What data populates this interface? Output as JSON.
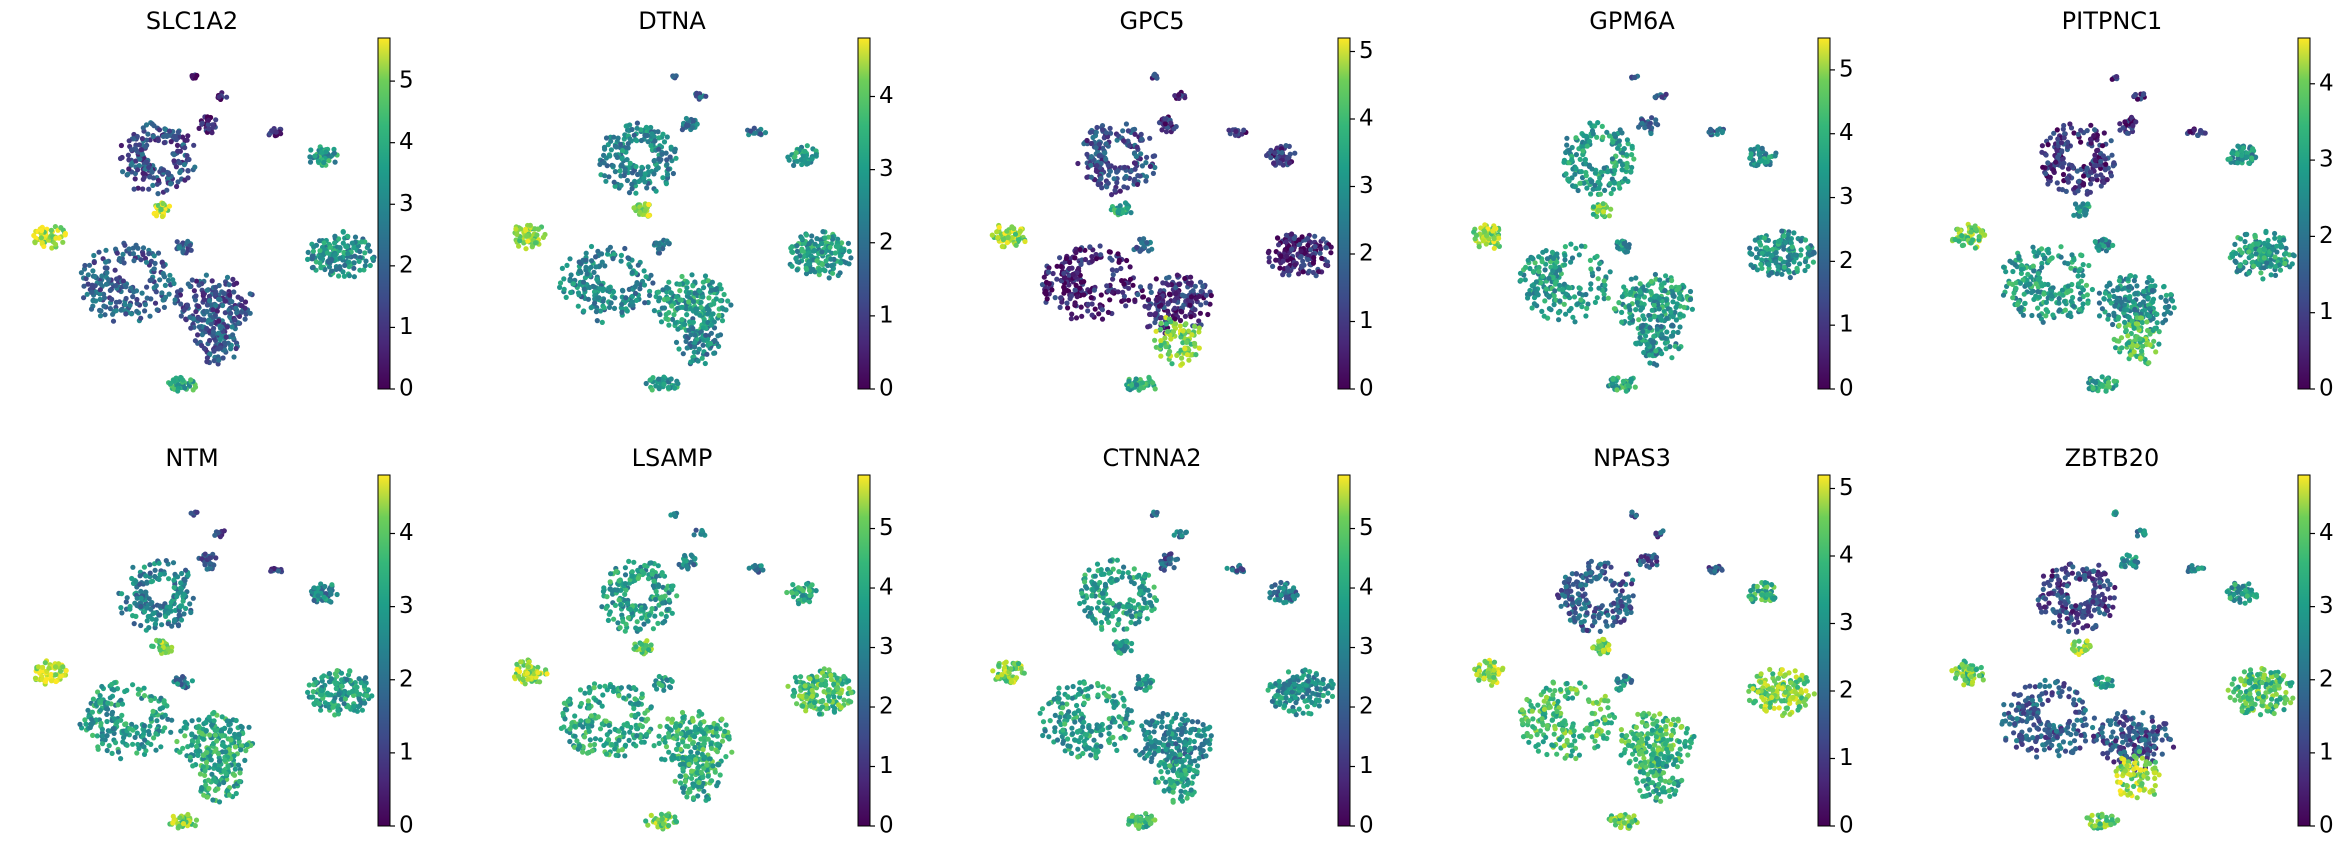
{
  "chart_data": {
    "type": "scatter",
    "description": "UMAP embedding colored by gene expression",
    "colormap": "viridis",
    "colors": {
      "low": "#440154",
      "mid": "#21918c",
      "high": "#fde725"
    },
    "panels": [
      {
        "gene": "SLC1A2",
        "cbar_max": 5.7,
        "ticks": [
          0,
          1,
          2,
          3,
          4,
          5
        ],
        "tick_labels": [
          "0",
          "1",
          "2",
          "3",
          "4",
          "5"
        ],
        "cluster_expr": [
          0.25,
          0.9,
          0.3,
          0.25,
          0.5,
          0.55,
          0.9,
          0.1,
          0.15,
          0.15,
          0.15,
          0.3,
          0.6,
          0.3
        ]
      },
      {
        "gene": "DTNA",
        "cbar_max": 4.8,
        "ticks": [
          0,
          1,
          2,
          3,
          4
        ],
        "tick_labels": [
          "0",
          "1",
          "2",
          "3",
          "4"
        ],
        "cluster_expr": [
          0.45,
          0.85,
          0.45,
          0.55,
          0.55,
          0.55,
          0.85,
          0.35,
          0.35,
          0.35,
          0.35,
          0.45,
          0.55,
          0.45
        ]
      },
      {
        "gene": "GPC5",
        "cbar_max": 5.2,
        "ticks": [
          0,
          1,
          2,
          3,
          4,
          5
        ],
        "tick_labels": [
          "0",
          "1",
          "2",
          "3",
          "4",
          "5"
        ],
        "cluster_expr": [
          0.25,
          0.85,
          0.1,
          0.15,
          0.1,
          0.15,
          0.6,
          0.15,
          0.1,
          0.15,
          0.1,
          0.8,
          0.6,
          0.3
        ]
      },
      {
        "gene": "GPM6A",
        "cbar_max": 5.5,
        "ticks": [
          0,
          1,
          2,
          3,
          4,
          5
        ],
        "tick_labels": [
          "0",
          "1",
          "2",
          "3",
          "4",
          "5"
        ],
        "cluster_expr": [
          0.55,
          0.85,
          0.55,
          0.55,
          0.5,
          0.5,
          0.75,
          0.3,
          0.35,
          0.3,
          0.3,
          0.5,
          0.6,
          0.5
        ]
      },
      {
        "gene": "PITPNC1",
        "cbar_max": 4.6,
        "ticks": [
          0,
          1,
          2,
          3,
          4
        ],
        "tick_labels": [
          "0",
          "1",
          "2",
          "3",
          "4"
        ],
        "cluster_expr": [
          0.15,
          0.8,
          0.55,
          0.5,
          0.55,
          0.5,
          0.55,
          0.1,
          0.15,
          0.15,
          0.15,
          0.7,
          0.6,
          0.45
        ]
      },
      {
        "gene": "NTM",
        "cbar_max": 4.8,
        "ticks": [
          0,
          1,
          2,
          3,
          4
        ],
        "tick_labels": [
          "0",
          "1",
          "2",
          "3",
          "4"
        ],
        "cluster_expr": [
          0.45,
          0.9,
          0.55,
          0.6,
          0.55,
          0.45,
          0.8,
          0.3,
          0.2,
          0.3,
          0.2,
          0.6,
          0.8,
          0.4
        ]
      },
      {
        "gene": "LSAMP",
        "cbar_max": 5.9,
        "ticks": [
          0,
          1,
          2,
          3,
          4,
          5
        ],
        "tick_labels": [
          "0",
          "1",
          "2",
          "3",
          "4",
          "5"
        ],
        "cluster_expr": [
          0.55,
          0.85,
          0.6,
          0.65,
          0.7,
          0.55,
          0.75,
          0.45,
          0.4,
          0.4,
          0.4,
          0.6,
          0.8,
          0.55
        ]
      },
      {
        "gene": "CTNNA2",
        "cbar_max": 5.9,
        "ticks": [
          0,
          1,
          2,
          3,
          4,
          5
        ],
        "tick_labels": [
          "0",
          "1",
          "2",
          "3",
          "4",
          "5"
        ],
        "cluster_expr": [
          0.55,
          0.8,
          0.55,
          0.45,
          0.5,
          0.4,
          0.55,
          0.3,
          0.35,
          0.35,
          0.35,
          0.55,
          0.65,
          0.5
        ]
      },
      {
        "gene": "NPAS3",
        "cbar_max": 5.2,
        "ticks": [
          0,
          1,
          2,
          3,
          4,
          5
        ],
        "tick_labels": [
          "0",
          "1",
          "2",
          "3",
          "4",
          "5"
        ],
        "cluster_expr": [
          0.3,
          0.85,
          0.7,
          0.7,
          0.8,
          0.65,
          0.8,
          0.25,
          0.25,
          0.25,
          0.25,
          0.6,
          0.75,
          0.45
        ]
      },
      {
        "gene": "ZBTB20",
        "cbar_max": 4.8,
        "ticks": [
          0,
          1,
          2,
          3,
          4
        ],
        "tick_labels": [
          "0",
          "1",
          "2",
          "3",
          "4"
        ],
        "cluster_expr": [
          0.2,
          0.75,
          0.3,
          0.25,
          0.7,
          0.55,
          0.85,
          0.5,
          0.45,
          0.5,
          0.45,
          0.85,
          0.75,
          0.55
        ]
      }
    ]
  }
}
